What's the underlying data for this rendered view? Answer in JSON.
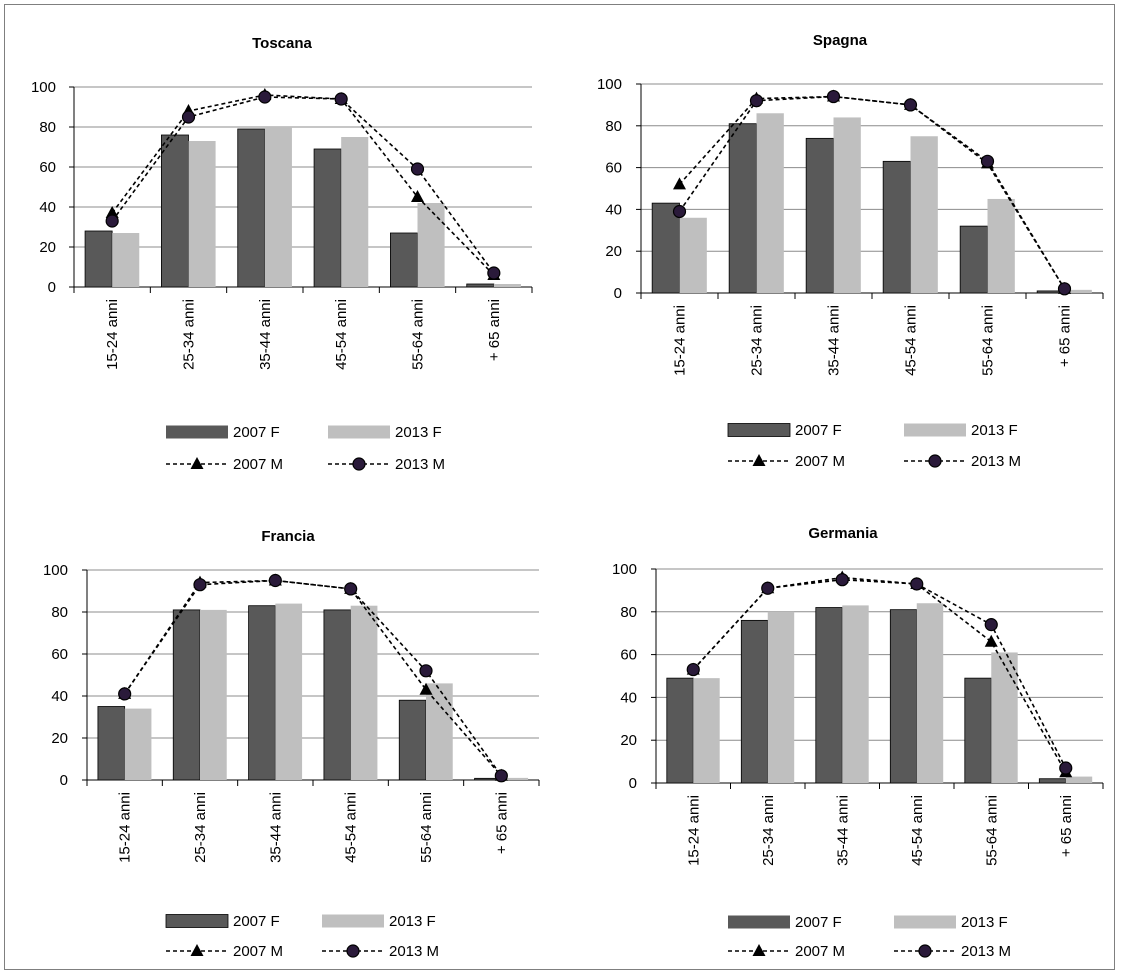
{
  "colors": {
    "bar_2007_F": "#595959",
    "bar_2013_F": "#bfbfbf",
    "line_2007_M": "#000000",
    "line_2013_M": "#000000",
    "marker_2013_M_fill": "#2a1a3a",
    "gridline": "#8c8c8c"
  },
  "chart_data": [
    {
      "type": "bar",
      "title": "Toscana",
      "categories": [
        "15-24 anni",
        "25-34 anni",
        "35-44 anni",
        "45-54 anni",
        "55-64 anni",
        "+ 65 anni"
      ],
      "yticks": [
        "0",
        "20",
        "40",
        "60",
        "80",
        "100"
      ],
      "ylim": [
        0,
        100
      ],
      "grid": true,
      "legend_position": "bottom",
      "series": [
        {
          "name": "2007 F",
          "kind": "bar",
          "values": [
            28,
            76,
            79,
            69,
            27,
            1.5
          ]
        },
        {
          "name": "2013 F",
          "kind": "bar",
          "values": [
            27,
            73,
            80,
            75,
            42,
            1.5
          ]
        },
        {
          "name": "2007 M",
          "kind": "line",
          "marker": "triangle",
          "values": [
            37,
            88,
            96,
            94,
            45,
            6
          ]
        },
        {
          "name": "2013 M",
          "kind": "line",
          "marker": "circle",
          "values": [
            33,
            85,
            95,
            94,
            59,
            7
          ]
        }
      ]
    },
    {
      "type": "bar",
      "title": "Spagna",
      "categories": [
        "15-24 anni",
        "25-34 anni",
        "35-44 anni",
        "45-54 anni",
        "55-64 anni",
        "+ 65 anni"
      ],
      "yticks": [
        "0",
        "20",
        "40",
        "60",
        "80",
        "100"
      ],
      "ylim": [
        0,
        100
      ],
      "grid": true,
      "legend_position": "bottom",
      "series": [
        {
          "name": "2007 F",
          "kind": "bar",
          "values": [
            43,
            81,
            74,
            63,
            32,
            1
          ]
        },
        {
          "name": "2013 F",
          "kind": "bar",
          "values": [
            36,
            86,
            84,
            75,
            45,
            1.5
          ]
        },
        {
          "name": "2007 M",
          "kind": "line",
          "marker": "triangle",
          "values": [
            52,
            93,
            94,
            90,
            62,
            2
          ]
        },
        {
          "name": "2013 M",
          "kind": "line",
          "marker": "circle",
          "values": [
            39,
            92,
            94,
            90,
            63,
            2
          ]
        }
      ]
    },
    {
      "type": "bar",
      "title": "Francia",
      "categories": [
        "15-24 anni",
        "25-34 anni",
        "35-44 anni",
        "45-54 anni",
        "55-64 anni",
        "+ 65 anni"
      ],
      "yticks": [
        "0",
        "20",
        "40",
        "60",
        "80",
        "100"
      ],
      "ylim": [
        0,
        100
      ],
      "grid": true,
      "legend_position": "bottom",
      "series": [
        {
          "name": "2007 F",
          "kind": "bar",
          "values": [
            35,
            81,
            83,
            81,
            38,
            0.8
          ]
        },
        {
          "name": "2013 F",
          "kind": "bar",
          "values": [
            34,
            81,
            84,
            83,
            46,
            1
          ]
        },
        {
          "name": "2007 M",
          "kind": "line",
          "marker": "triangle",
          "values": [
            41,
            94,
            95,
            91,
            43,
            2
          ]
        },
        {
          "name": "2013 M",
          "kind": "line",
          "marker": "circle",
          "values": [
            41,
            93,
            95,
            91,
            52,
            2
          ]
        }
      ]
    },
    {
      "type": "bar",
      "title": "Germania",
      "categories": [
        "15-24 anni",
        "25-34 anni",
        "35-44 anni",
        "45-54 anni",
        "55-64 anni",
        "+ 65 anni"
      ],
      "yticks": [
        "0",
        "20",
        "40",
        "60",
        "80",
        "100"
      ],
      "ylim": [
        0,
        100
      ],
      "grid": true,
      "legend_position": "bottom",
      "series": [
        {
          "name": "2007 F",
          "kind": "bar",
          "values": [
            49,
            76,
            82,
            81,
            49,
            2
          ]
        },
        {
          "name": "2013 F",
          "kind": "bar",
          "values": [
            49,
            80,
            83,
            84,
            61,
            3
          ]
        },
        {
          "name": "2007 M",
          "kind": "line",
          "marker": "triangle",
          "values": [
            53,
            91,
            96,
            93,
            66,
            5
          ]
        },
        {
          "name": "2013 M",
          "kind": "line",
          "marker": "circle",
          "values": [
            53,
            91,
            95,
            93,
            74,
            7
          ]
        }
      ]
    }
  ]
}
